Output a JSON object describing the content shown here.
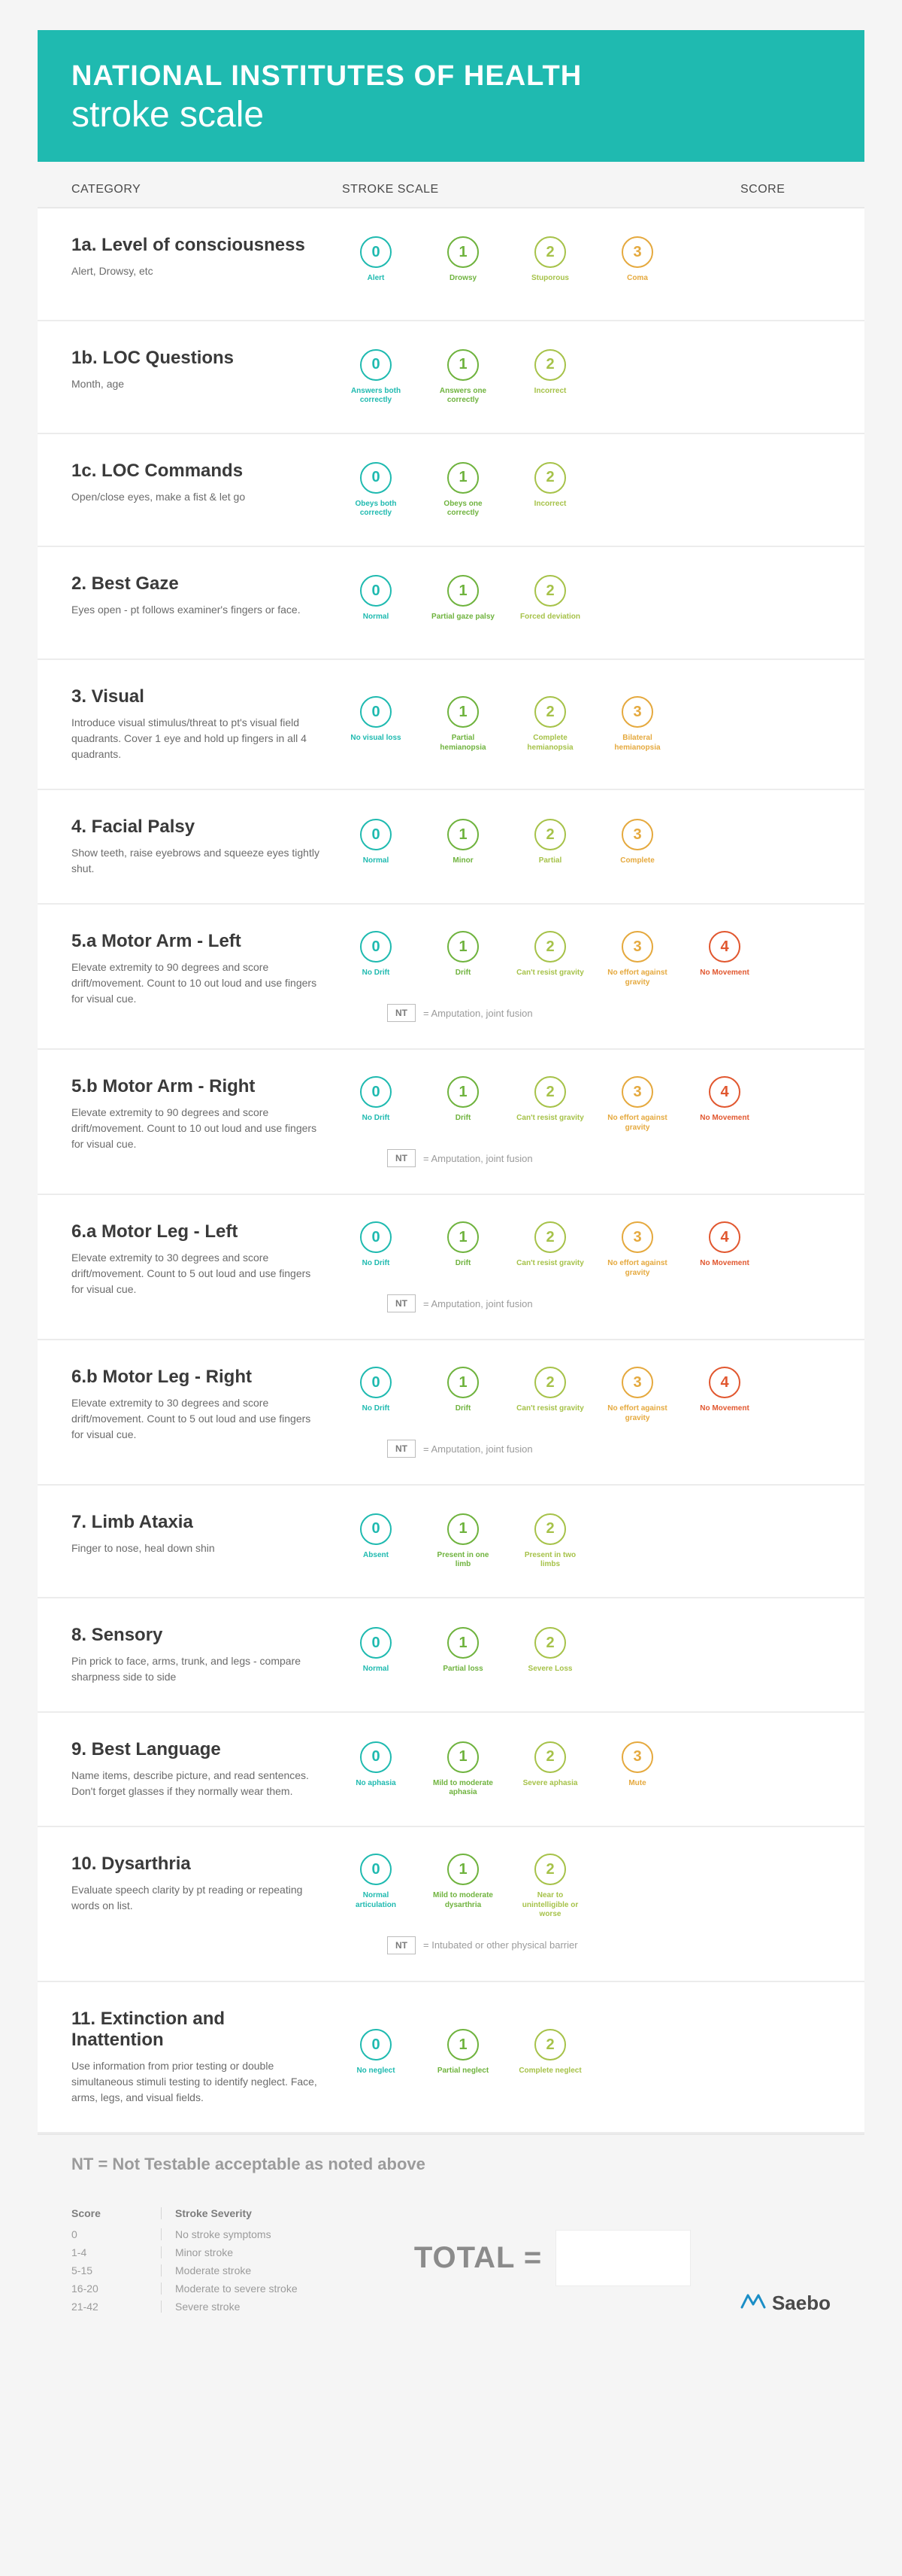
{
  "colors": {
    "accent": "#1fbab0",
    "scale": [
      "#1fbab0",
      "#6fb33e",
      "#a6c249",
      "#e5a93e",
      "#e1572f"
    ],
    "bg": "#f5f5f5",
    "text": "#4a4a4a",
    "muted": "#9b9b9b"
  },
  "header": {
    "line1": "NATIONAL INSTITUTES OF HEALTH",
    "line2": "stroke scale"
  },
  "columns": {
    "category": "CATEGORY",
    "scale": "STROKE SCALE",
    "score": "SCORE"
  },
  "rows": [
    {
      "title": "1a. Level of consciousness",
      "desc": "Alert, Drowsy, etc",
      "opts": [
        "Alert",
        "Drowsy",
        "Stuporous",
        "Coma"
      ],
      "nt": null
    },
    {
      "title": "1b. LOC Questions",
      "desc": "Month, age",
      "opts": [
        "Answers both correctly",
        "Answers one correctly",
        "Incorrect"
      ],
      "nt": null
    },
    {
      "title": "1c. LOC Commands",
      "desc": "Open/close eyes, make a fist & let go",
      "opts": [
        "Obeys both correctly",
        "Obeys one correctly",
        "Incorrect"
      ],
      "nt": null
    },
    {
      "title": "2. Best Gaze",
      "desc": "Eyes open - pt follows examiner's fingers or face.",
      "opts": [
        "Normal",
        "Partial gaze palsy",
        "Forced deviation"
      ],
      "nt": null
    },
    {
      "title": "3. Visual",
      "desc": "Introduce visual stimulus/threat to pt's visual field quadrants. Cover 1 eye and hold up fingers in all 4 quadrants.",
      "opts": [
        "No visual loss",
        "Partial hemianopsia",
        "Complete hemianopsia",
        "Bilateral hemianopsia"
      ],
      "nt": null
    },
    {
      "title": "4. Facial Palsy",
      "desc": "Show teeth, raise eyebrows and squeeze eyes tightly shut.",
      "opts": [
        "Normal",
        "Minor",
        "Partial",
        "Complete"
      ],
      "nt": null
    },
    {
      "title": "5.a Motor Arm - Left",
      "desc": "Elevate extremity to 90 degrees and score drift/movement. Count to 10 out loud and use fingers for visual cue.",
      "opts": [
        "No Drift",
        "Drift",
        "Can't resist gravity",
        "No effort against gravity",
        "No Movement"
      ],
      "nt": "Amputation, joint fusion"
    },
    {
      "title": "5.b Motor Arm - Right",
      "desc": "Elevate extremity to 90 degrees and score drift/movement. Count to 10 out loud and use fingers for visual cue.",
      "opts": [
        "No Drift",
        "Drift",
        "Can't resist gravity",
        "No effort against gravity",
        "No Movement"
      ],
      "nt": "Amputation, joint fusion"
    },
    {
      "title": "6.a Motor Leg - Left",
      "desc": "Elevate extremity to 30 degrees and score drift/movement. Count to 5 out loud and use fingers for visual cue.",
      "opts": [
        "No Drift",
        "Drift",
        "Can't resist gravity",
        "No effort against gravity",
        "No Movement"
      ],
      "nt": "Amputation, joint fusion"
    },
    {
      "title": "6.b Motor Leg - Right",
      "desc": "Elevate extremity to 30 degrees and score drift/movement. Count to 5 out loud and use fingers for visual cue.",
      "opts": [
        "No Drift",
        "Drift",
        "Can't resist gravity",
        "No effort against gravity",
        "No Movement"
      ],
      "nt": "Amputation, joint fusion"
    },
    {
      "title": "7. Limb Ataxia",
      "desc": "Finger to nose, heal down shin",
      "opts": [
        "Absent",
        "Present in one limb",
        "Present in two limbs"
      ],
      "nt": null
    },
    {
      "title": "8. Sensory",
      "desc": "Pin prick to face, arms, trunk, and legs - compare sharpness side to side",
      "opts": [
        "Normal",
        "Partial loss",
        "Severe Loss"
      ],
      "nt": null
    },
    {
      "title": "9. Best Language",
      "desc": "Name items, describe picture, and read sentences. Don't forget glasses if they normally wear them.",
      "opts": [
        "No aphasia",
        "Mild to moderate aphasia",
        "Severe aphasia",
        "Mute"
      ],
      "nt": null
    },
    {
      "title": "10. Dysarthria",
      "desc": "Evaluate speech clarity by pt reading or repeating words on list.",
      "opts": [
        "Normal articulation",
        "Mild to moderate dysarthria",
        "Near to unintelligible or worse"
      ],
      "nt": "Intubated or other physical barrier"
    },
    {
      "title": "11. Extinction and Inattention",
      "desc": "Use information from prior testing or double simultaneous stimuli testing to identify neglect. Face, arms, legs, and visual fields.",
      "opts": [
        "No neglect",
        "Partial neglect",
        "Complete neglect"
      ],
      "nt": null
    }
  ],
  "nt_label": "NT",
  "nt_eq": " = ",
  "nt_definition": "NT =  Not Testable acceptable as noted above",
  "severity": {
    "head_score": "Score",
    "head_sev": "Stroke Severity",
    "rows": [
      {
        "score": "0",
        "label": "No stroke symptoms"
      },
      {
        "score": "1-4",
        "label": "Minor stroke"
      },
      {
        "score": "5-15",
        "label": "Moderate stroke"
      },
      {
        "score": "16-20",
        "label": "Moderate to severe stroke"
      },
      {
        "score": "21-42",
        "label": "Severe stroke"
      }
    ]
  },
  "total_label": "TOTAL =",
  "logo_text": "Saebo"
}
